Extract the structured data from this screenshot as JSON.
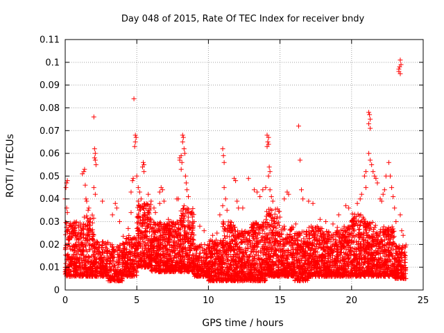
{
  "chart_data": {
    "type": "scatter",
    "title": "Day 048 of 2015, Rate Of TEC Index for receiver bndy",
    "xlabel": "GPS time / hours",
    "ylabel": "ROTI / TECUs",
    "xlim": [
      0,
      25
    ],
    "ylim": [
      0,
      0.11
    ],
    "x_ticks": [
      "0",
      "5",
      "10",
      "15",
      "20",
      "25"
    ],
    "y_ticks": [
      "0",
      "0.01",
      "0.02",
      "0.03",
      "0.04",
      "0.05",
      "0.06",
      "0.07",
      "0.08",
      "0.09",
      "0.1",
      "0.11"
    ],
    "grid": true,
    "marker": "plus",
    "color": "#ff0000",
    "series": [
      {
        "points": [
          [
            0.0,
            0.008
          ],
          [
            0.0,
            0.04
          ],
          [
            0.05,
            0.045
          ],
          [
            0.1,
            0.047
          ],
          [
            0.15,
            0.048
          ],
          [
            0.1,
            0.036
          ],
          [
            0.15,
            0.034
          ],
          [
            1.2,
            0.051
          ],
          [
            1.3,
            0.052
          ],
          [
            1.35,
            0.053
          ],
          [
            1.4,
            0.046
          ],
          [
            1.45,
            0.04
          ],
          [
            1.5,
            0.039
          ],
          [
            1.6,
            0.035
          ],
          [
            1.65,
            0.036
          ],
          [
            2.0,
            0.076
          ],
          [
            2.05,
            0.062
          ],
          [
            2.1,
            0.06
          ],
          [
            2.05,
            0.058
          ],
          [
            2.1,
            0.057
          ],
          [
            2.15,
            0.055
          ],
          [
            2.0,
            0.045
          ],
          [
            2.1,
            0.042
          ],
          [
            2.6,
            0.039
          ],
          [
            3.3,
            0.033
          ],
          [
            3.5,
            0.038
          ],
          [
            3.6,
            0.036
          ],
          [
            3.8,
            0.03
          ],
          [
            4.4,
            0.027
          ],
          [
            4.6,
            0.034
          ],
          [
            4.6,
            0.043
          ],
          [
            4.7,
            0.048
          ],
          [
            4.75,
            0.049
          ],
          [
            4.8,
            0.084
          ],
          [
            4.9,
            0.068
          ],
          [
            4.95,
            0.067
          ],
          [
            4.9,
            0.065
          ],
          [
            4.85,
            0.063
          ],
          [
            5.0,
            0.05
          ],
          [
            5.1,
            0.045
          ],
          [
            5.2,
            0.043
          ],
          [
            5.3,
            0.04
          ],
          [
            5.1,
            0.039
          ],
          [
            5.4,
            0.054
          ],
          [
            5.5,
            0.055
          ],
          [
            5.45,
            0.056
          ],
          [
            5.5,
            0.052
          ],
          [
            5.8,
            0.042
          ],
          [
            6.0,
            0.039
          ],
          [
            6.2,
            0.036
          ],
          [
            6.3,
            0.034
          ],
          [
            6.6,
            0.043
          ],
          [
            6.7,
            0.045
          ],
          [
            6.8,
            0.044
          ],
          [
            6.9,
            0.039
          ],
          [
            6.6,
            0.038
          ],
          [
            7.0,
            0.028
          ],
          [
            7.2,
            0.031
          ],
          [
            7.4,
            0.03
          ],
          [
            7.8,
            0.04
          ],
          [
            7.9,
            0.04
          ],
          [
            8.0,
            0.057
          ],
          [
            8.1,
            0.059
          ],
          [
            8.0,
            0.058
          ],
          [
            8.15,
            0.056
          ],
          [
            8.1,
            0.053
          ],
          [
            8.2,
            0.068
          ],
          [
            8.25,
            0.067
          ],
          [
            8.2,
            0.065
          ],
          [
            8.3,
            0.062
          ],
          [
            8.35,
            0.06
          ],
          [
            8.4,
            0.05
          ],
          [
            8.45,
            0.047
          ],
          [
            8.5,
            0.044
          ],
          [
            8.6,
            0.041
          ],
          [
            8.3,
            0.037
          ],
          [
            9.0,
            0.03
          ],
          [
            9.4,
            0.028
          ],
          [
            9.7,
            0.026
          ],
          [
            10.3,
            0.024
          ],
          [
            10.6,
            0.025
          ],
          [
            10.8,
            0.033
          ],
          [
            11.0,
            0.062
          ],
          [
            11.05,
            0.059
          ],
          [
            11.1,
            0.056
          ],
          [
            11.1,
            0.045
          ],
          [
            11.2,
            0.04
          ],
          [
            11.0,
            0.037
          ],
          [
            11.3,
            0.035
          ],
          [
            11.8,
            0.049
          ],
          [
            11.9,
            0.048
          ],
          [
            12.0,
            0.039
          ],
          [
            12.1,
            0.036
          ],
          [
            12.4,
            0.036
          ],
          [
            12.8,
            0.049
          ],
          [
            13.2,
            0.044
          ],
          [
            13.4,
            0.043
          ],
          [
            13.6,
            0.041
          ],
          [
            13.8,
            0.044
          ],
          [
            14.0,
            0.045
          ],
          [
            14.1,
            0.068
          ],
          [
            14.2,
            0.067
          ],
          [
            14.15,
            0.065
          ],
          [
            14.2,
            0.064
          ],
          [
            14.1,
            0.063
          ],
          [
            14.25,
            0.054
          ],
          [
            14.3,
            0.052
          ],
          [
            14.2,
            0.05
          ],
          [
            14.3,
            0.044
          ],
          [
            14.4,
            0.041
          ],
          [
            14.5,
            0.039
          ],
          [
            15.0,
            0.032
          ],
          [
            15.3,
            0.04
          ],
          [
            15.5,
            0.043
          ],
          [
            15.6,
            0.042
          ],
          [
            16.1,
            0.029
          ],
          [
            16.3,
            0.072
          ],
          [
            16.4,
            0.057
          ],
          [
            16.5,
            0.044
          ],
          [
            16.6,
            0.04
          ],
          [
            17.0,
            0.039
          ],
          [
            17.3,
            0.038
          ],
          [
            17.8,
            0.031
          ],
          [
            18.2,
            0.03
          ],
          [
            18.7,
            0.029
          ],
          [
            19.1,
            0.033
          ],
          [
            19.6,
            0.037
          ],
          [
            19.8,
            0.036
          ],
          [
            20.1,
            0.031
          ],
          [
            20.4,
            0.038
          ],
          [
            20.6,
            0.04
          ],
          [
            20.7,
            0.042
          ],
          [
            20.9,
            0.05
          ],
          [
            21.0,
            0.052
          ],
          [
            21.0,
            0.045
          ],
          [
            21.2,
            0.078
          ],
          [
            21.25,
            0.077
          ],
          [
            21.3,
            0.075
          ],
          [
            21.2,
            0.073
          ],
          [
            21.3,
            0.071
          ],
          [
            21.2,
            0.06
          ],
          [
            21.3,
            0.057
          ],
          [
            21.4,
            0.055
          ],
          [
            21.5,
            0.052
          ],
          [
            21.6,
            0.05
          ],
          [
            21.7,
            0.049
          ],
          [
            21.8,
            0.047
          ],
          [
            22.0,
            0.04
          ],
          [
            22.1,
            0.039
          ],
          [
            22.2,
            0.042
          ],
          [
            22.3,
            0.044
          ],
          [
            22.4,
            0.05
          ],
          [
            22.6,
            0.056
          ],
          [
            22.7,
            0.05
          ],
          [
            22.8,
            0.045
          ],
          [
            22.9,
            0.041
          ],
          [
            23.0,
            0.036
          ],
          [
            23.1,
            0.03
          ],
          [
            23.3,
            0.096
          ],
          [
            23.35,
            0.098
          ],
          [
            23.4,
            0.101
          ],
          [
            23.45,
            0.099
          ],
          [
            23.3,
            0.097
          ],
          [
            23.4,
            0.095
          ],
          [
            23.4,
            0.033
          ],
          [
            23.5,
            0.026
          ],
          [
            23.6,
            0.024
          ]
        ],
        "bands": [
          {
            "x": [
              0.0,
              1.0
            ],
            "y": [
              0.006,
              0.03
            ],
            "count": 220
          },
          {
            "x": [
              1.0,
              2.0
            ],
            "y": [
              0.006,
              0.033
            ],
            "count": 230
          },
          {
            "x": [
              2.0,
              3.0
            ],
            "y": [
              0.006,
              0.022
            ],
            "count": 180
          },
          {
            "x": [
              3.0,
              4.0
            ],
            "y": [
              0.004,
              0.02
            ],
            "count": 170
          },
          {
            "x": [
              4.0,
              5.0
            ],
            "y": [
              0.006,
              0.024
            ],
            "count": 200
          },
          {
            "x": [
              5.0,
              6.0
            ],
            "y": [
              0.01,
              0.038
            ],
            "count": 260
          },
          {
            "x": [
              6.0,
              7.0
            ],
            "y": [
              0.008,
              0.03
            ],
            "count": 240
          },
          {
            "x": [
              7.0,
              8.0
            ],
            "y": [
              0.008,
              0.03
            ],
            "count": 240
          },
          {
            "x": [
              8.0,
              9.0
            ],
            "y": [
              0.008,
              0.036
            ],
            "count": 260
          },
          {
            "x": [
              9.0,
              10.0
            ],
            "y": [
              0.006,
              0.02
            ],
            "count": 180
          },
          {
            "x": [
              10.0,
              11.0
            ],
            "y": [
              0.004,
              0.022
            ],
            "count": 220
          },
          {
            "x": [
              11.0,
              12.0
            ],
            "y": [
              0.004,
              0.03
            ],
            "count": 250
          },
          {
            "x": [
              12.0,
              13.0
            ],
            "y": [
              0.004,
              0.026
            ],
            "count": 240
          },
          {
            "x": [
              13.0,
              14.0
            ],
            "y": [
              0.004,
              0.03
            ],
            "count": 250
          },
          {
            "x": [
              14.0,
              15.0
            ],
            "y": [
              0.006,
              0.036
            ],
            "count": 270
          },
          {
            "x": [
              15.0,
              16.0
            ],
            "y": [
              0.006,
              0.028
            ],
            "count": 240
          },
          {
            "x": [
              16.0,
              17.0
            ],
            "y": [
              0.004,
              0.026
            ],
            "count": 230
          },
          {
            "x": [
              17.0,
              18.0
            ],
            "y": [
              0.006,
              0.028
            ],
            "count": 230
          },
          {
            "x": [
              18.0,
              19.0
            ],
            "y": [
              0.006,
              0.026
            ],
            "count": 230
          },
          {
            "x": [
              19.0,
              20.0
            ],
            "y": [
              0.006,
              0.028
            ],
            "count": 230
          },
          {
            "x": [
              20.0,
              21.0
            ],
            "y": [
              0.006,
              0.034
            ],
            "count": 250
          },
          {
            "x": [
              21.0,
              22.0
            ],
            "y": [
              0.006,
              0.03
            ],
            "count": 240
          },
          {
            "x": [
              22.0,
              23.0
            ],
            "y": [
              0.006,
              0.028
            ],
            "count": 220
          },
          {
            "x": [
              23.0,
              23.8
            ],
            "y": [
              0.005,
              0.02
            ],
            "count": 150
          }
        ]
      }
    ]
  }
}
